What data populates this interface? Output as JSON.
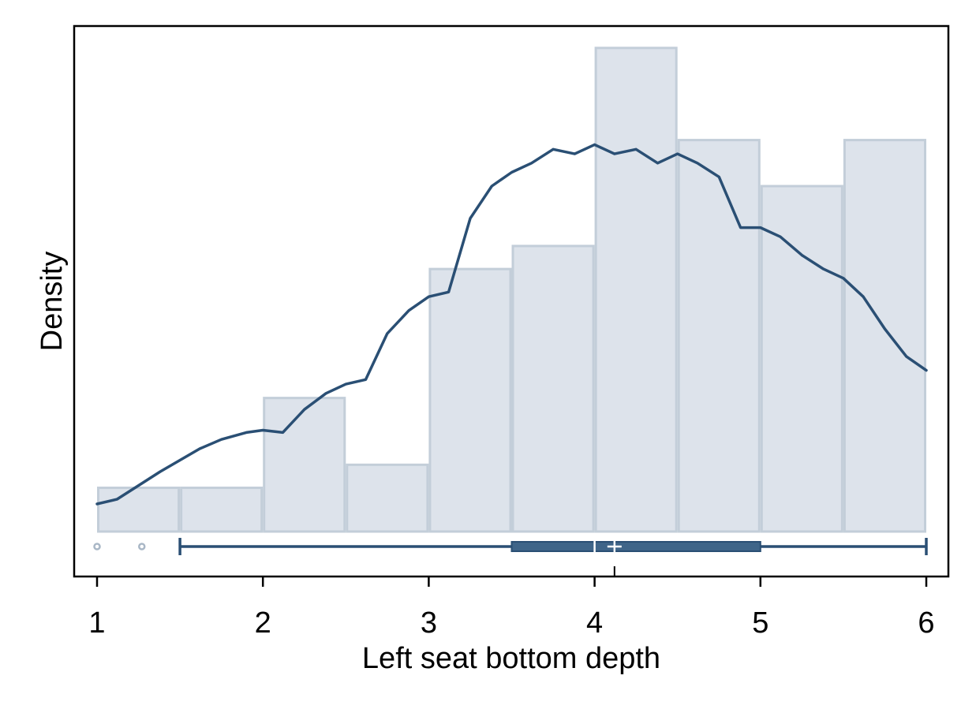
{
  "chart_data": {
    "type": "histogram",
    "xlabel": "Left seat bottom depth",
    "ylabel": "Density",
    "xlim": [
      1,
      6
    ],
    "x_ticks": [
      "1",
      "2",
      "3",
      "4",
      "5",
      "6"
    ],
    "y_ticks_shown": false,
    "grid": false,
    "colors": {
      "bar_fill": "#dde3eb",
      "bar_stroke": "#c3ced9",
      "line": "#2a4f74",
      "box_fill": "#3f6589",
      "outlier": "#a9b7c6"
    },
    "histogram": {
      "bin_width": 0.5,
      "bins": [
        {
          "start": 1.0,
          "end": 1.5,
          "density": 0.095
        },
        {
          "start": 1.5,
          "end": 2.0,
          "density": 0.095
        },
        {
          "start": 2.0,
          "end": 2.5,
          "density": 0.29
        },
        {
          "start": 2.5,
          "end": 3.0,
          "density": 0.145
        },
        {
          "start": 3.0,
          "end": 3.5,
          "density": 0.57
        },
        {
          "start": 3.5,
          "end": 4.0,
          "density": 0.62
        },
        {
          "start": 4.0,
          "end": 4.5,
          "density": 1.05
        },
        {
          "start": 4.5,
          "end": 5.0,
          "density": 0.85
        },
        {
          "start": 5.0,
          "end": 5.5,
          "density": 0.75
        },
        {
          "start": 5.5,
          "end": 6.0,
          "density": 0.85
        }
      ]
    },
    "density_curve": {
      "x": [
        1.0,
        1.12,
        1.25,
        1.38,
        1.5,
        1.62,
        1.75,
        1.9,
        2.0,
        2.12,
        2.25,
        2.38,
        2.5,
        2.62,
        2.75,
        2.88,
        3.0,
        3.12,
        3.25,
        3.38,
        3.5,
        3.62,
        3.75,
        3.88,
        4.0,
        4.12,
        4.25,
        4.38,
        4.5,
        4.62,
        4.75,
        4.88,
        5.0,
        5.12,
        5.25,
        5.38,
        5.5,
        5.62,
        5.75,
        5.88,
        6.0
      ],
      "y": [
        0.06,
        0.07,
        0.1,
        0.13,
        0.155,
        0.18,
        0.2,
        0.215,
        0.22,
        0.215,
        0.265,
        0.3,
        0.32,
        0.33,
        0.43,
        0.48,
        0.51,
        0.52,
        0.68,
        0.75,
        0.78,
        0.8,
        0.83,
        0.82,
        0.84,
        0.82,
        0.83,
        0.8,
        0.82,
        0.8,
        0.77,
        0.66,
        0.66,
        0.64,
        0.6,
        0.57,
        0.55,
        0.51,
        0.44,
        0.38,
        0.35
      ]
    },
    "boxplot": {
      "whisker_low": 1.5,
      "q1": 3.5,
      "median": 4.0,
      "mean": 4.12,
      "q3": 5.0,
      "whisker_high": 6.0,
      "outliers": [
        1.0,
        1.27
      ]
    }
  }
}
